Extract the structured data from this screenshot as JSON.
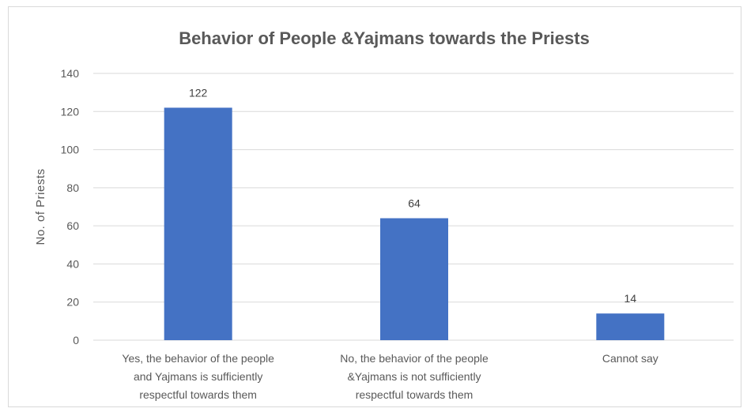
{
  "chart_data": {
    "type": "bar",
    "title": "Behavior of People &Yajmans towards the Priests",
    "xlabel": "",
    "ylabel": "No. of Priests",
    "categories": [
      "Yes, the behavior of the people and Yajmans is sufficiently respectful towards them",
      "No, the behavior of the people &Yajmans is not sufficiently respectful towards them",
      "Cannot say"
    ],
    "category_lines": [
      [
        "Yes, the behavior of the people",
        "and Yajmans is sufficiently",
        "respectful towards them"
      ],
      [
        "No, the behavior of the people",
        "&Yajmans is not sufficiently",
        "respectful towards them"
      ],
      [
        "Cannot say"
      ]
    ],
    "values": [
      122,
      64,
      14
    ],
    "ylim": [
      0,
      140
    ],
    "yticks": [
      0,
      20,
      40,
      60,
      80,
      100,
      120,
      140
    ],
    "grid": true,
    "legend": "none",
    "bar_color": "#4472C4"
  }
}
